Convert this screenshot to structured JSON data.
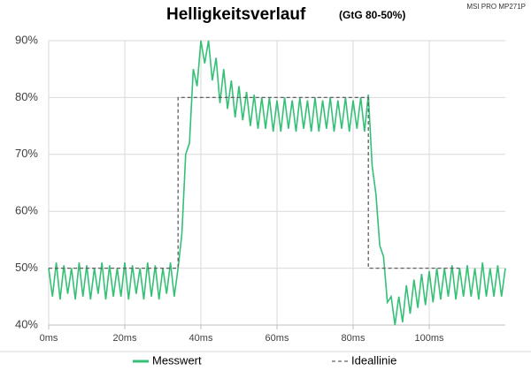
{
  "chart_data": {
    "type": "line",
    "title": "Helligkeitsverlauf",
    "subtitle": "(GtG 80-50%)",
    "annotation": "MSI PRO MP271P",
    "xlim": [
      0,
      120
    ],
    "ylim": [
      40,
      90
    ],
    "xticks": [
      {
        "value": 0,
        "label": "0ms"
      },
      {
        "value": 20,
        "label": "20ms"
      },
      {
        "value": 40,
        "label": "40ms"
      },
      {
        "value": 60,
        "label": "60ms"
      },
      {
        "value": 80,
        "label": "80ms"
      },
      {
        "value": 100,
        "label": "100ms"
      }
    ],
    "yticks": [
      {
        "value": 40,
        "label": "40%"
      },
      {
        "value": 50,
        "label": "50%"
      },
      {
        "value": 60,
        "label": "60%"
      },
      {
        "value": 70,
        "label": "70%"
      },
      {
        "value": 80,
        "label": "80%"
      },
      {
        "value": 90,
        "label": "90%"
      }
    ],
    "grid": true,
    "series": [
      {
        "name": "Messwert",
        "color": "#35c077",
        "dash": false,
        "x": [
          0,
          1,
          2,
          3,
          4,
          5,
          6,
          7,
          8,
          9,
          10,
          11,
          12,
          13,
          14,
          15,
          16,
          17,
          18,
          19,
          20,
          21,
          22,
          23,
          24,
          25,
          26,
          27,
          28,
          29,
          30,
          31,
          32,
          33,
          34,
          35,
          36,
          37,
          38,
          39,
          40,
          41,
          42,
          43,
          44,
          45,
          46,
          47,
          48,
          49,
          50,
          51,
          52,
          53,
          54,
          55,
          56,
          57,
          58,
          59,
          60,
          61,
          62,
          63,
          64,
          65,
          66,
          67,
          68,
          69,
          70,
          71,
          72,
          73,
          74,
          75,
          76,
          77,
          78,
          79,
          80,
          81,
          82,
          83,
          84,
          85,
          86,
          87,
          88,
          89,
          90,
          91,
          92,
          93,
          94,
          95,
          96,
          97,
          98,
          99,
          100,
          101,
          102,
          103,
          104,
          105,
          106,
          107,
          108,
          109,
          110,
          111,
          112,
          113,
          114,
          115,
          116,
          117,
          118,
          119,
          120
        ],
        "values": [
          50,
          45,
          51,
          44.5,
          50.5,
          45.5,
          50,
          44.5,
          51,
          45,
          50.5,
          44.5,
          50,
          45.5,
          51,
          44.5,
          50.5,
          45,
          50,
          45,
          51,
          44.5,
          50.5,
          45.5,
          50,
          44.5,
          51,
          45,
          50.5,
          44.5,
          50,
          45.5,
          51,
          45,
          50,
          56,
          70,
          72,
          85,
          82,
          90,
          86,
          90,
          83,
          87,
          79,
          85,
          78,
          83,
          76.5,
          82,
          76,
          81,
          75,
          80.5,
          74.5,
          80,
          74.5,
          80,
          74,
          79.5,
          74,
          80,
          74.5,
          79.5,
          74,
          80,
          74.5,
          79.5,
          74,
          80,
          74,
          79.5,
          74.5,
          80,
          74,
          79.5,
          74.5,
          80,
          74,
          79.5,
          74.5,
          80,
          74,
          80.5,
          68,
          63,
          54,
          52,
          44,
          45,
          40,
          45,
          40.5,
          47,
          42,
          48,
          43,
          49,
          43.5,
          49.5,
          44,
          50,
          44.5,
          50,
          45,
          50.5,
          44.5,
          50,
          45,
          50.5,
          45,
          50,
          44.5,
          51,
          45,
          50,
          45,
          50.5,
          45,
          50
        ]
      },
      {
        "name": "Ideallinie",
        "color": "#606060",
        "dash": true,
        "x": [
          0,
          34,
          34,
          84,
          84,
          108
        ],
        "values": [
          50,
          50,
          80,
          80,
          50,
          50
        ]
      }
    ]
  }
}
